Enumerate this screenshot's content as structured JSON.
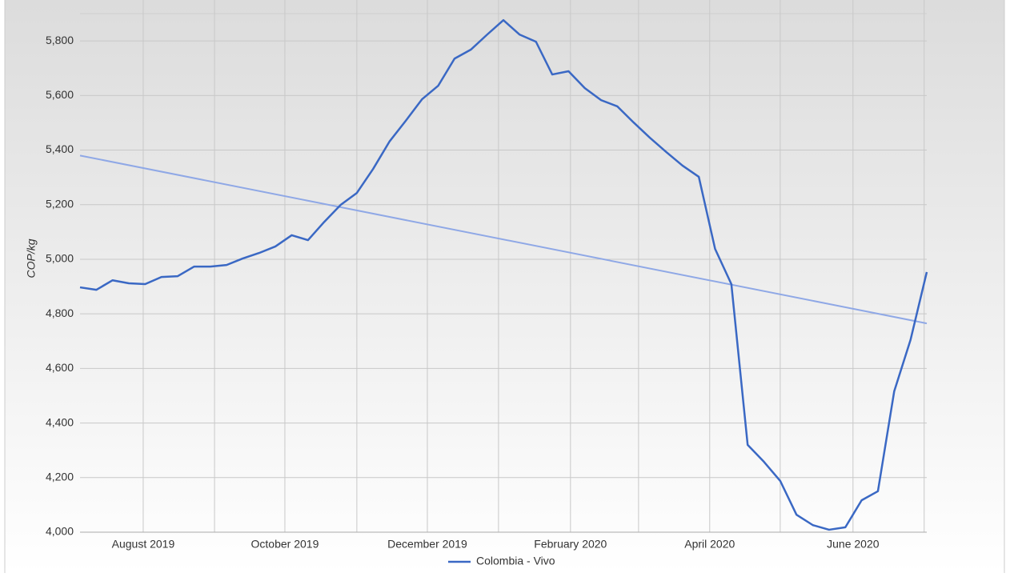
{
  "chart_data": {
    "type": "line",
    "y_label": "COP/kg",
    "series": [
      {
        "name": "Colombia - Vivo",
        "color": "#3a68c4",
        "values": [
          4897,
          4888,
          4923,
          4912,
          4909,
          4935,
          4938,
          4973,
          4973,
          4979,
          5003,
          5023,
          5047,
          5088,
          5070,
          5137,
          5199,
          5243,
          5331,
          5431,
          5507,
          5586,
          5636,
          5735,
          5768,
          5823,
          5876,
          5823,
          5797,
          5677,
          5689,
          5627,
          5583,
          5560,
          5501,
          5445,
          5393,
          5343,
          5302,
          5038,
          4909,
          4320,
          4258,
          4188,
          4064,
          4026,
          4009,
          4018,
          4117,
          4150,
          4516,
          4704,
          4953
        ]
      }
    ],
    "trendline": {
      "color": "#8fa8e6",
      "values": [
        5380,
        4765
      ]
    },
    "xlim": [
      0,
      52
    ],
    "xticks": [
      {
        "value": 3.88,
        "label": "August 2019"
      },
      {
        "value": 12.58,
        "label": "October 2019"
      },
      {
        "value": 21.33,
        "label": "December 2019"
      },
      {
        "value": 30.12,
        "label": "February 2020"
      },
      {
        "value": 38.67,
        "label": "April 2020"
      },
      {
        "value": 47.47,
        "label": "June 2020"
      }
    ],
    "xminor": [
      8.26,
      17.0,
      25.7,
      34.3,
      43.0,
      51.84
    ],
    "ylim": [
      4000,
      5900
    ],
    "yticks": [
      {
        "value": 4000,
        "label": "4,000"
      },
      {
        "value": 4200,
        "label": "4,200"
      },
      {
        "value": 4400,
        "label": "4,400"
      },
      {
        "value": 4600,
        "label": "4,600"
      },
      {
        "value": 4800,
        "label": "4,800"
      },
      {
        "value": 5000,
        "label": "5,000"
      },
      {
        "value": 5200,
        "label": "5,200"
      },
      {
        "value": 5400,
        "label": "5,400"
      },
      {
        "value": 5600,
        "label": "5,600"
      },
      {
        "value": 5800,
        "label": "5,800"
      }
    ],
    "grid": true,
    "legend": "bottom"
  }
}
